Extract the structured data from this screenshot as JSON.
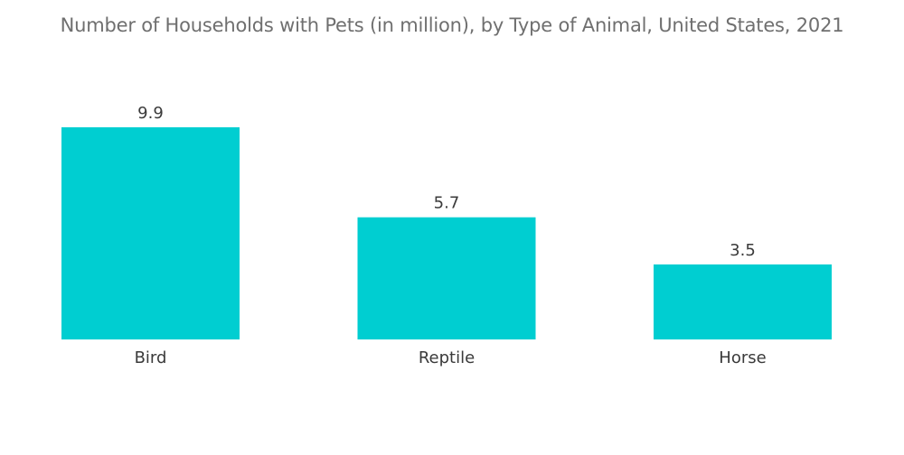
{
  "chart_data": {
    "type": "bar",
    "title": "Number of Households with Pets (in million), by Type of Animal, United States, 2021",
    "categories": [
      "Bird",
      "Reptile",
      "Horse"
    ],
    "values": [
      9.9,
      5.7,
      3.5
    ],
    "value_labels": [
      "9.9",
      "5.7",
      "3.5"
    ],
    "xlabel": "",
    "ylabel": "",
    "ylim": [
      0,
      9.9
    ],
    "grid": false,
    "legend": "none",
    "bar_color": "#00ced1",
    "text_color": "#3a3a3a",
    "title_color": "#6f6f6f"
  }
}
